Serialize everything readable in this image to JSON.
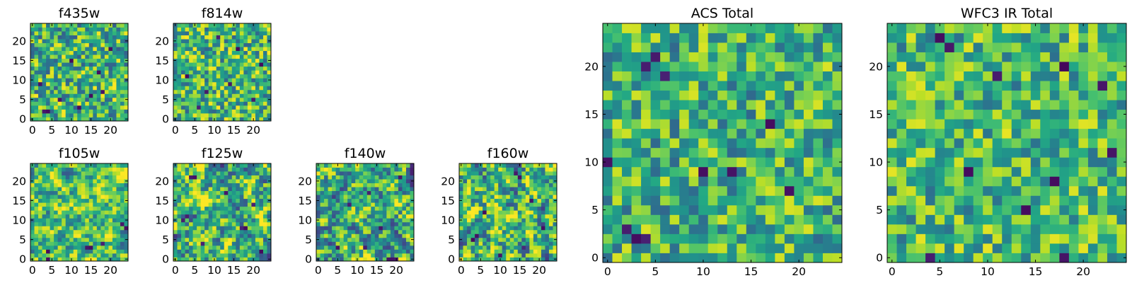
{
  "figure": {
    "colormap": "viridis",
    "color_range": [
      0,
      1
    ]
  },
  "chart_data": [
    {
      "type": "heatmap",
      "title": "f435w",
      "nx": 25,
      "ny": 25,
      "xlim": [
        -0.5,
        24.5
      ],
      "ylim": [
        -0.5,
        24.5
      ],
      "xticks": [
        0,
        5,
        10,
        15,
        20
      ],
      "yticks": [
        0,
        5,
        10,
        15,
        20
      ],
      "texture": "speckle",
      "mean": 0.63,
      "spread": 0.2,
      "seed": 11,
      "dark_cells": [
        [
          3,
          2
        ],
        [
          4,
          2
        ],
        [
          17,
          12
        ],
        [
          12,
          3
        ],
        [
          20,
          18
        ],
        [
          7,
          5
        ],
        [
          15,
          6
        ],
        [
          2,
          9
        ],
        [
          18,
          7
        ],
        [
          10,
          15
        ]
      ]
    },
    {
      "type": "heatmap",
      "title": "f814w",
      "nx": 25,
      "ny": 25,
      "xlim": [
        -0.5,
        24.5
      ],
      "ylim": [
        -0.5,
        24.5
      ],
      "xticks": [
        0,
        5,
        10,
        15,
        20
      ],
      "yticks": [
        0,
        5,
        10,
        15,
        20
      ],
      "texture": "speckle",
      "mean": 0.66,
      "spread": 0.2,
      "seed": 23,
      "dark_cells": [
        [
          8,
          7
        ],
        [
          20,
          5
        ],
        [
          3,
          11
        ],
        [
          16,
          18
        ],
        [
          11,
          21
        ],
        [
          6,
          3
        ],
        [
          22,
          14
        ],
        [
          14,
          9
        ]
      ]
    },
    {
      "type": "heatmap",
      "title": "f105w",
      "nx": 25,
      "ny": 25,
      "xlim": [
        -0.5,
        24.5
      ],
      "ylim": [
        -0.5,
        24.5
      ],
      "xticks": [
        0,
        5,
        10,
        15,
        20
      ],
      "yticks": [
        0,
        5,
        10,
        15,
        20
      ],
      "texture": "smooth",
      "mean": 0.7,
      "spread": 0.18,
      "seed": 37,
      "dark_cells": [
        [
          4,
          0
        ],
        [
          4,
          2
        ],
        [
          14,
          3
        ],
        [
          15,
          3
        ],
        [
          24,
          8
        ],
        [
          23,
          9
        ],
        [
          18,
          4
        ]
      ]
    },
    {
      "type": "heatmap",
      "title": "f125w",
      "nx": 25,
      "ny": 25,
      "xlim": [
        -0.5,
        24.5
      ],
      "ylim": [
        -0.5,
        24.5
      ],
      "xticks": [
        0,
        5,
        10,
        15,
        20
      ],
      "yticks": [
        0,
        5,
        10,
        15,
        20
      ],
      "texture": "smooth",
      "mean": 0.64,
      "spread": 0.22,
      "seed": 41,
      "dark_cells": [
        [
          4,
          21
        ],
        [
          5,
          21
        ],
        [
          3,
          11
        ],
        [
          2,
          10
        ],
        [
          17,
          8
        ],
        [
          18,
          8
        ],
        [
          22,
          2
        ],
        [
          13,
          17
        ],
        [
          7,
          4
        ],
        [
          20,
          14
        ]
      ]
    },
    {
      "type": "heatmap",
      "title": "f140w",
      "nx": 25,
      "ny": 25,
      "xlim": [
        -0.5,
        24.5
      ],
      "ylim": [
        -0.5,
        24.5
      ],
      "xticks": [
        0,
        5,
        10,
        15,
        20
      ],
      "yticks": [
        0,
        5,
        10,
        15,
        20
      ],
      "texture": "smooth",
      "mean": 0.6,
      "spread": 0.22,
      "seed": 53,
      "dark_cells": [
        [
          18,
          0
        ],
        [
          19,
          0
        ],
        [
          20,
          0
        ],
        [
          5,
          3
        ],
        [
          13,
          17
        ],
        [
          16,
          8
        ],
        [
          12,
          3
        ],
        [
          21,
          21
        ],
        [
          8,
          14
        ]
      ]
    },
    {
      "type": "heatmap",
      "title": "f160w",
      "nx": 25,
      "ny": 25,
      "xlim": [
        -0.5,
        24.5
      ],
      "ylim": [
        -0.5,
        24.5
      ],
      "xticks": [
        0,
        5,
        10,
        15,
        20
      ],
      "yticks": [
        0,
        5,
        10,
        15,
        20
      ],
      "texture": "smooth",
      "mean": 0.66,
      "spread": 0.22,
      "seed": 67,
      "dark_cells": [
        [
          14,
          22
        ],
        [
          15,
          21
        ],
        [
          3,
          5
        ],
        [
          4,
          6
        ],
        [
          10,
          1
        ],
        [
          18,
          15
        ],
        [
          21,
          8
        ],
        [
          6,
          12
        ]
      ]
    },
    {
      "type": "heatmap",
      "title": "ACS Total",
      "nx": 25,
      "ny": 25,
      "xlim": [
        -0.5,
        24.5
      ],
      "ylim": [
        -0.5,
        24.5
      ],
      "xticks": [
        0,
        5,
        10,
        15,
        20
      ],
      "yticks": [
        0,
        5,
        10,
        15,
        20
      ],
      "texture": "speckle",
      "mean": 0.64,
      "spread": 0.18,
      "seed": 79,
      "dark_cells": [
        [
          3,
          2
        ],
        [
          4,
          2
        ],
        [
          5,
          21
        ],
        [
          6,
          19
        ],
        [
          4,
          20
        ],
        [
          0,
          10
        ],
        [
          13,
          9
        ],
        [
          17,
          14
        ],
        [
          19,
          7
        ],
        [
          10,
          9
        ],
        [
          2,
          3
        ]
      ]
    },
    {
      "type": "heatmap",
      "title": "WFC3 IR Total",
      "nx": 25,
      "ny": 25,
      "xlim": [
        -0.5,
        24.5
      ],
      "ylim": [
        -0.5,
        24.5
      ],
      "xticks": [
        0,
        5,
        10,
        15,
        20
      ],
      "yticks": [
        0,
        5,
        10,
        15,
        20
      ],
      "texture": "speckle",
      "mean": 0.68,
      "spread": 0.17,
      "seed": 83,
      "dark_cells": [
        [
          5,
          23
        ],
        [
          6,
          22
        ],
        [
          4,
          0
        ],
        [
          18,
          0
        ],
        [
          8,
          9
        ],
        [
          18,
          20
        ],
        [
          11,
          19
        ],
        [
          14,
          5
        ],
        [
          23,
          11
        ],
        [
          17,
          8
        ],
        [
          22,
          18
        ]
      ]
    }
  ]
}
